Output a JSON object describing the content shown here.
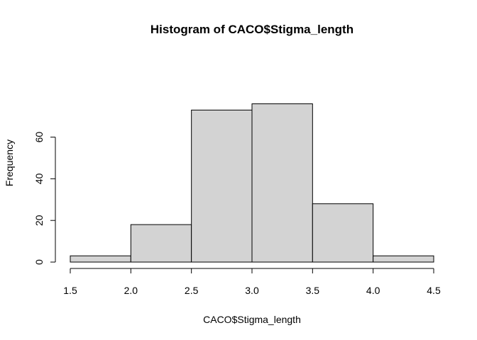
{
  "chart_data": {
    "type": "bar",
    "title": "Histogram of CACO$Stigma_length",
    "xlabel": "CACO$Stigma_length",
    "ylabel": "Frequency",
    "bins": [
      {
        "from": 1.5,
        "to": 2.0,
        "count": 3
      },
      {
        "from": 2.0,
        "to": 2.5,
        "count": 18
      },
      {
        "from": 2.5,
        "to": 3.0,
        "count": 73
      },
      {
        "from": 3.0,
        "to": 3.5,
        "count": 76
      },
      {
        "from": 3.5,
        "to": 4.0,
        "count": 28
      },
      {
        "from": 4.0,
        "to": 4.5,
        "count": 3
      }
    ],
    "xlim": [
      1.5,
      4.5
    ],
    "ylim": [
      0,
      76
    ],
    "x_ticks": [
      "1.5",
      "2.0",
      "2.5",
      "3.0",
      "3.5",
      "4.0",
      "4.5"
    ],
    "y_ticks": [
      "0",
      "20",
      "40",
      "60"
    ],
    "grid": false,
    "colors": {
      "bar_fill": "#d3d3d3",
      "bar_stroke": "#000000"
    }
  }
}
